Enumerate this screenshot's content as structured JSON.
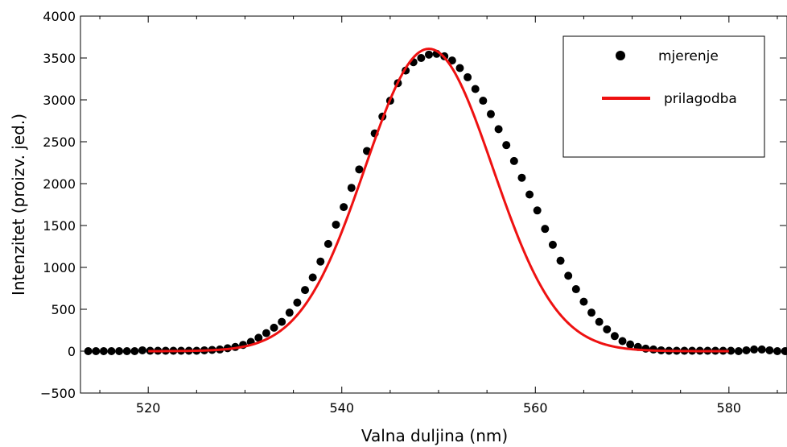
{
  "chart_data": {
    "type": "scatter",
    "title": "",
    "xlabel": "Valna duljina (nm)",
    "ylabel": "Intenzitet (proizv. jed.)",
    "xlim": [
      513,
      586
    ],
    "ylim": [
      -500,
      4000
    ],
    "x_ticks": [
      520,
      540,
      560,
      580
    ],
    "x_tick_labels": [
      "520",
      "540",
      "560",
      "580"
    ],
    "y_ticks": [
      -500,
      0,
      500,
      1000,
      1500,
      2000,
      2500,
      3000,
      3500,
      4000
    ],
    "y_tick_labels": [
      "−500",
      "0",
      "500",
      "1000",
      "1500",
      "2000",
      "2500",
      "3000",
      "3500",
      "4000"
    ],
    "grid": false,
    "legend_position": "top-right",
    "series": [
      {
        "name": "mjerenje",
        "kind": "scatter",
        "color": "#000000",
        "points": [
          [
            513.8,
            0
          ],
          [
            514.6,
            0
          ],
          [
            515.4,
            0
          ],
          [
            516.2,
            0
          ],
          [
            517.0,
            0
          ],
          [
            517.8,
            0
          ],
          [
            518.6,
            0
          ],
          [
            519.4,
            10
          ],
          [
            520.2,
            5
          ],
          [
            521.0,
            5
          ],
          [
            521.8,
            5
          ],
          [
            522.6,
            5
          ],
          [
            523.4,
            5
          ],
          [
            524.2,
            5
          ],
          [
            525.0,
            5
          ],
          [
            525.8,
            10
          ],
          [
            526.6,
            15
          ],
          [
            527.4,
            20
          ],
          [
            528.2,
            35
          ],
          [
            529.0,
            50
          ],
          [
            529.8,
            75
          ],
          [
            530.6,
            110
          ],
          [
            531.4,
            160
          ],
          [
            532.2,
            215
          ],
          [
            533.0,
            280
          ],
          [
            533.8,
            350
          ],
          [
            534.6,
            460
          ],
          [
            535.4,
            580
          ],
          [
            536.2,
            730
          ],
          [
            537.0,
            880
          ],
          [
            537.8,
            1070
          ],
          [
            538.6,
            1280
          ],
          [
            539.4,
            1510
          ],
          [
            540.2,
            1720
          ],
          [
            541.0,
            1950
          ],
          [
            541.8,
            2170
          ],
          [
            542.6,
            2390
          ],
          [
            543.4,
            2600
          ],
          [
            544.2,
            2800
          ],
          [
            545.0,
            2990
          ],
          [
            545.8,
            3200
          ],
          [
            546.6,
            3350
          ],
          [
            547.4,
            3450
          ],
          [
            548.2,
            3500
          ],
          [
            549.0,
            3540
          ],
          [
            549.8,
            3550
          ],
          [
            550.6,
            3520
          ],
          [
            551.4,
            3470
          ],
          [
            552.2,
            3380
          ],
          [
            553.0,
            3270
          ],
          [
            553.8,
            3130
          ],
          [
            554.6,
            2990
          ],
          [
            555.4,
            2830
          ],
          [
            556.2,
            2650
          ],
          [
            557.0,
            2460
          ],
          [
            557.8,
            2270
          ],
          [
            558.6,
            2070
          ],
          [
            559.4,
            1870
          ],
          [
            560.2,
            1680
          ],
          [
            561.0,
            1460
          ],
          [
            561.8,
            1270
          ],
          [
            562.6,
            1080
          ],
          [
            563.4,
            900
          ],
          [
            564.2,
            740
          ],
          [
            565.0,
            590
          ],
          [
            565.8,
            460
          ],
          [
            566.6,
            350
          ],
          [
            567.4,
            260
          ],
          [
            568.2,
            180
          ],
          [
            569.0,
            120
          ],
          [
            569.8,
            80
          ],
          [
            570.6,
            50
          ],
          [
            571.4,
            30
          ],
          [
            572.2,
            20
          ],
          [
            573.0,
            10
          ],
          [
            573.8,
            5
          ],
          [
            574.6,
            5
          ],
          [
            575.4,
            5
          ],
          [
            576.2,
            5
          ],
          [
            577.0,
            5
          ],
          [
            577.8,
            5
          ],
          [
            578.6,
            5
          ],
          [
            579.4,
            5
          ],
          [
            580.2,
            5
          ],
          [
            581.0,
            0
          ],
          [
            581.8,
            10
          ],
          [
            582.6,
            20
          ],
          [
            583.4,
            20
          ],
          [
            584.2,
            10
          ],
          [
            585.0,
            0
          ],
          [
            585.8,
            0
          ]
        ]
      },
      {
        "name": "prilagodba",
        "kind": "line",
        "color": "#ee1111",
        "model": "gaussian",
        "amplitude": 3610,
        "center": 549.0,
        "sigma": 6.6,
        "x_range": [
          520,
          580
        ]
      }
    ]
  }
}
